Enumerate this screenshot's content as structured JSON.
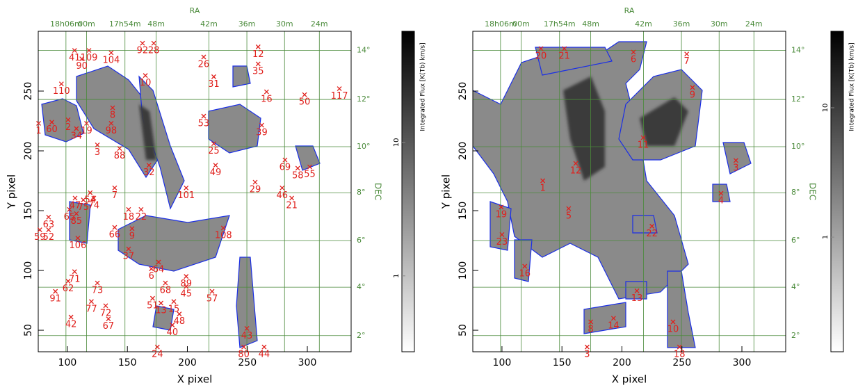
{
  "chart_data": [
    {
      "type": "scatter",
      "xlabel": "X pixel",
      "ylabel": "Y pixel",
      "top_label": "RA",
      "right_label": "DEC",
      "xlim": [
        75.7,
        336.5
      ],
      "ylim": [
        32,
        300
      ],
      "xticks": [
        100,
        150,
        200,
        250,
        300
      ],
      "yticks": [
        50,
        100,
        150,
        200,
        250
      ],
      "grid": true,
      "grid_color": "#4a8a3a",
      "marker_color": "#e0201c",
      "contour_color": "#1a2ee6",
      "ra_ticks": [
        {
          "value": 98.8,
          "label": "18h06m"
        },
        {
          "value": 116,
          "label": "00m"
        },
        {
          "value": 148,
          "label": "17h54m"
        },
        {
          "value": 174,
          "label": "48m"
        },
        {
          "value": 218,
          "label": "42m"
        },
        {
          "value": 249.6,
          "label": "36m"
        },
        {
          "value": 281,
          "label": "30m"
        },
        {
          "value": 310,
          "label": "24m"
        }
      ],
      "dec_ticks": [
        {
          "value": 284,
          "label": "14°"
        },
        {
          "value": 243,
          "label": "12°"
        },
        {
          "value": 203.5,
          "label": "10°"
        },
        {
          "value": 165,
          "label": "8°"
        },
        {
          "value": 125,
          "label": "6°"
        },
        {
          "value": 86,
          "label": "4°"
        },
        {
          "value": 45.5,
          "label": "2°"
        }
      ],
      "clumps": [
        {
          "label": "41",
          "x": 106,
          "y": 284
        },
        {
          "label": "109",
          "x": 118,
          "y": 284
        },
        {
          "label": "104",
          "x": 136.5,
          "y": 282
        },
        {
          "label": "92",
          "x": 162.6,
          "y": 290
        },
        {
          "label": "28",
          "x": 172,
          "y": 290
        },
        {
          "label": "12",
          "x": 259,
          "y": 287
        },
        {
          "label": "90",
          "x": 112,
          "y": 277
        },
        {
          "label": "26",
          "x": 213.6,
          "y": 278.5
        },
        {
          "label": "35",
          "x": 259,
          "y": 272.7
        },
        {
          "label": "31",
          "x": 222,
          "y": 262
        },
        {
          "label": "110",
          "x": 95,
          "y": 256
        },
        {
          "label": "10",
          "x": 165,
          "y": 263
        },
        {
          "label": "16",
          "x": 266,
          "y": 249.4
        },
        {
          "label": "50",
          "x": 297.7,
          "y": 247
        },
        {
          "label": "117",
          "x": 326.7,
          "y": 252
        },
        {
          "label": "1",
          "x": 76,
          "y": 223
        },
        {
          "label": "60",
          "x": 87,
          "y": 224
        },
        {
          "label": "2",
          "x": 100.6,
          "y": 226
        },
        {
          "label": "19",
          "x": 116,
          "y": 223
        },
        {
          "label": "34",
          "x": 107.5,
          "y": 218.6
        },
        {
          "label": "8",
          "x": 137.7,
          "y": 236
        },
        {
          "label": "98",
          "x": 136.5,
          "y": 223
        },
        {
          "label": "53",
          "x": 213.6,
          "y": 229
        },
        {
          "label": "39",
          "x": 262,
          "y": 221.5
        },
        {
          "label": "3",
          "x": 125,
          "y": 205
        },
        {
          "label": "88",
          "x": 143.5,
          "y": 202
        },
        {
          "label": "25",
          "x": 222,
          "y": 206
        },
        {
          "label": "32",
          "x": 168,
          "y": 188
        },
        {
          "label": "49",
          "x": 223.5,
          "y": 188
        },
        {
          "label": "69",
          "x": 281.4,
          "y": 192.4
        },
        {
          "label": "58",
          "x": 292,
          "y": 185.5
        },
        {
          "label": "55",
          "x": 302,
          "y": 186.6
        },
        {
          "label": "7",
          "x": 139.4,
          "y": 169
        },
        {
          "label": "29",
          "x": 256.5,
          "y": 173.8
        },
        {
          "label": "101",
          "x": 199,
          "y": 169
        },
        {
          "label": "46",
          "x": 279,
          "y": 169
        },
        {
          "label": "54",
          "x": 119,
          "y": 165
        },
        {
          "label": "21",
          "x": 287,
          "y": 160.5
        },
        {
          "label": "47",
          "x": 106.4,
          "y": 160.5
        },
        {
          "label": "75",
          "x": 113.3,
          "y": 159
        },
        {
          "label": "74",
          "x": 122,
          "y": 160.5
        },
        {
          "label": "65",
          "x": 101.7,
          "y": 151
        },
        {
          "label": "18",
          "x": 151,
          "y": 151
        },
        {
          "label": "22",
          "x": 161.4,
          "y": 151
        },
        {
          "label": "63",
          "x": 84.3,
          "y": 144.6
        },
        {
          "label": "85",
          "x": 107.5,
          "y": 147.5
        },
        {
          "label": "108",
          "x": 230,
          "y": 135.5
        },
        {
          "label": "59",
          "x": 77,
          "y": 134
        },
        {
          "label": "52",
          "x": 84.3,
          "y": 134
        },
        {
          "label": "66",
          "x": 139.4,
          "y": 136
        },
        {
          "label": "9",
          "x": 153.9,
          "y": 135
        },
        {
          "label": "106",
          "x": 108.7,
          "y": 127
        },
        {
          "label": "37",
          "x": 151,
          "y": 118
        },
        {
          "label": "64",
          "x": 176,
          "y": 107
        },
        {
          "label": "6",
          "x": 170,
          "y": 101.4
        },
        {
          "label": "71",
          "x": 106,
          "y": 99
        },
        {
          "label": "73",
          "x": 125,
          "y": 89.5
        },
        {
          "label": "62",
          "x": 100.6,
          "y": 91
        },
        {
          "label": "91",
          "x": 90,
          "y": 82.5
        },
        {
          "label": "68",
          "x": 181.7,
          "y": 89.5
        },
        {
          "label": "89",
          "x": 199,
          "y": 95
        },
        {
          "label": "45",
          "x": 199,
          "y": 86.6
        },
        {
          "label": "57",
          "x": 220.6,
          "y": 82.5
        },
        {
          "label": "51",
          "x": 171,
          "y": 76.7
        },
        {
          "label": "13",
          "x": 178,
          "y": 72.7
        },
        {
          "label": "15",
          "x": 188.7,
          "y": 74
        },
        {
          "label": "77",
          "x": 120,
          "y": 74
        },
        {
          "label": "72",
          "x": 131.9,
          "y": 70.5
        },
        {
          "label": "42",
          "x": 103,
          "y": 61
        },
        {
          "label": "67",
          "x": 134.2,
          "y": 59.5
        },
        {
          "label": "48",
          "x": 193.3,
          "y": 63.6
        },
        {
          "label": "40",
          "x": 187.5,
          "y": 54.3
        },
        {
          "label": "43",
          "x": 249.6,
          "y": 51.5
        },
        {
          "label": "24",
          "x": 175,
          "y": 36
        },
        {
          "label": "80",
          "x": 247,
          "y": 36
        },
        {
          "label": "44",
          "x": 264,
          "y": 36
        }
      ],
      "colorbar": {
        "label": "Integrated Flux [K(Tb) km/s]",
        "log": true,
        "lim": [
          0.27,
          68
        ],
        "ticks": [
          1,
          10
        ]
      }
    },
    {
      "type": "scatter",
      "xlabel": "X pixel",
      "ylabel": "Y pixel",
      "top_label": "RA",
      "right_label": "DEC",
      "xlim": [
        75.7,
        336.5
      ],
      "ylim": [
        32,
        300
      ],
      "xticks": [
        100,
        150,
        200,
        250,
        300
      ],
      "yticks": [
        50,
        100,
        150,
        200,
        250
      ],
      "grid": true,
      "grid_color": "#4a8a3a",
      "marker_color": "#e0201c",
      "contour_color": "#1a2ee6",
      "ra_ticks": [
        {
          "value": 98.8,
          "label": "18h06m"
        },
        {
          "value": 116,
          "label": "00m"
        },
        {
          "value": 148,
          "label": "17h54m"
        },
        {
          "value": 174,
          "label": "48m"
        },
        {
          "value": 218,
          "label": "42m"
        },
        {
          "value": 249.6,
          "label": "36m"
        },
        {
          "value": 281,
          "label": "30m"
        },
        {
          "value": 310,
          "label": "24m"
        }
      ],
      "dec_ticks": [
        {
          "value": 284,
          "label": "14°"
        },
        {
          "value": 243,
          "label": "12°"
        },
        {
          "value": 203.5,
          "label": "10°"
        },
        {
          "value": 165,
          "label": "8°"
        },
        {
          "value": 125,
          "label": "6°"
        },
        {
          "value": 86,
          "label": "4°"
        },
        {
          "value": 45.5,
          "label": "2°"
        }
      ],
      "clumps": [
        {
          "label": "20",
          "x": 132.5,
          "y": 285.5
        },
        {
          "label": "21",
          "x": 152,
          "y": 285.5
        },
        {
          "label": "6",
          "x": 209.6,
          "y": 282.6
        },
        {
          "label": "7",
          "x": 254,
          "y": 281
        },
        {
          "label": "9",
          "x": 258.8,
          "y": 253
        },
        {
          "label": "11",
          "x": 217.7,
          "y": 211
        },
        {
          "label": "12",
          "x": 161.5,
          "y": 189.5
        },
        {
          "label": "1",
          "x": 134,
          "y": 175
        },
        {
          "label": "3",
          "x": 295,
          "y": 192
        },
        {
          "label": "4",
          "x": 282.6,
          "y": 164.5
        },
        {
          "label": "19",
          "x": 99.4,
          "y": 153
        },
        {
          "label": "5",
          "x": 155.6,
          "y": 151.7
        },
        {
          "label": "22",
          "x": 225,
          "y": 137
        },
        {
          "label": "23",
          "x": 100,
          "y": 130
        },
        {
          "label": "16",
          "x": 119,
          "y": 103.5
        },
        {
          "label": "13",
          "x": 212.5,
          "y": 83
        },
        {
          "label": "8",
          "x": 174,
          "y": 57
        },
        {
          "label": "14",
          "x": 193,
          "y": 60
        },
        {
          "label": "10",
          "x": 242.6,
          "y": 57
        },
        {
          "label": "3",
          "x": 171,
          "y": 36
        },
        {
          "label": "18",
          "x": 248,
          "y": 36
        }
      ],
      "colorbar": {
        "label": "Integrated Flux [K(Tb) km/s]",
        "log": true,
        "lim": [
          0.13,
          39
        ],
        "ticks": [
          1,
          10
        ]
      }
    }
  ]
}
